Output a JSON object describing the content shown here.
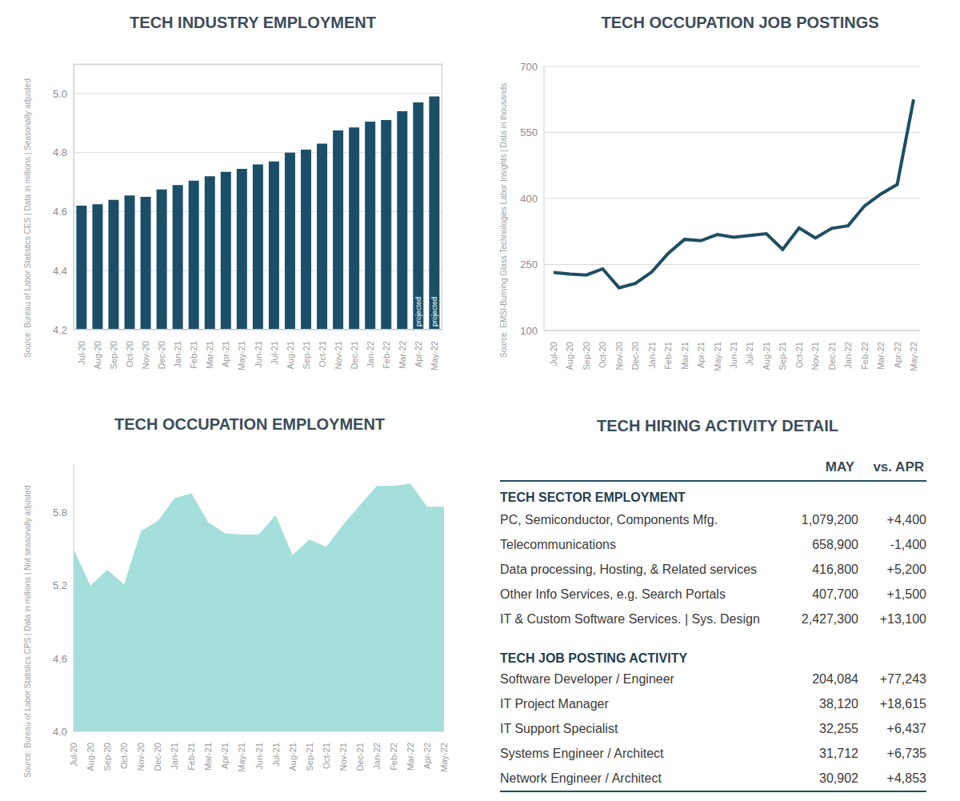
{
  "chart_data": [
    {
      "type": "bar",
      "title": "TECH INDUSTRY EMPLOYMENT",
      "y_label": "Source: Bureau of Labor Statistics CES | Data in millions | Seasonally adjusted",
      "categories": [
        "Jul-20",
        "Aug-20",
        "Sep-20",
        "Oct-20",
        "Nov-20",
        "Dec-20",
        "Jan-21",
        "Feb-21",
        "Mar-21",
        "Apr-21",
        "May-21",
        "Jun-21",
        "Jul-21",
        "Aug-21",
        "Sep-21",
        "Oct-21",
        "Nov-21",
        "Dec-21",
        "Jan-22",
        "Feb-22",
        "Mar-22",
        "Apr-22",
        "May-22"
      ],
      "values": [
        4.62,
        4.625,
        4.64,
        4.655,
        4.65,
        4.675,
        4.69,
        4.705,
        4.72,
        4.735,
        4.745,
        4.76,
        4.77,
        4.8,
        4.81,
        4.83,
        4.875,
        4.885,
        4.905,
        4.91,
        4.94,
        4.97,
        4.99
      ],
      "color": "#1b4f67",
      "ylim": [
        4.2,
        5.1
      ],
      "yticks": [
        4.2,
        4.4,
        4.6,
        4.8,
        {
          "value": 5.0,
          "label": "5.0"
        }
      ],
      "grid": true,
      "annotations": [
        {
          "x": "Apr-22",
          "text": "projected"
        },
        {
          "x": "May-22",
          "text": "projected"
        }
      ]
    },
    {
      "type": "line",
      "title": "TECH OCCUPATION JOB POSTINGS",
      "y_label": "Source: EMSI-Burning Glass Technologies Labor Insights | Data in thousands",
      "categories": [
        "Jul-20",
        "Aug-20",
        "Sep-20",
        "Oct-20",
        "Nov-20",
        "Dec-20",
        "Jan-21",
        "Feb-21",
        "Mar-21",
        "Apr-21",
        "May-21",
        "Jun-21",
        "Jul-21",
        "Aug-21",
        "Sep-21",
        "Oct-21",
        "Nov-21",
        "Dec-21",
        "Jan-22",
        "Feb-22",
        "Mar-22",
        "Apr-22",
        "May-22"
      ],
      "values": [
        232,
        228,
        226,
        240,
        197,
        207,
        233,
        275,
        307,
        304,
        318,
        312,
        316,
        320,
        284,
        333,
        310,
        332,
        338,
        383,
        410,
        432,
        625
      ],
      "color": "#1d4e63",
      "ylim": [
        100,
        700
      ],
      "yticks": [
        100,
        250,
        400,
        550,
        700
      ],
      "grid": true
    },
    {
      "type": "area",
      "title": "TECH OCCUPATION EMPLOYMENT",
      "y_label": "Source: Bureau of Labor Statistics CPS | Data in millions | Not seasonally adjusted",
      "categories": [
        "Jul-20",
        "Aug-20",
        "Sep-20",
        "Oct-20",
        "Nov-20",
        "Dec-20",
        "Jan-21",
        "Feb-21",
        "Mar-21",
        "Apr-21",
        "May-21",
        "Jun-21",
        "Jul-21",
        "Aug-21",
        "Sep-21",
        "Oct-21",
        "Nov-21",
        "Dec-21",
        "Jan-22",
        "Feb-22",
        "Mar-22",
        "Apr-22",
        "May-22"
      ],
      "values": [
        5.5,
        5.2,
        5.33,
        5.21,
        5.65,
        5.73,
        5.92,
        5.96,
        5.72,
        5.63,
        5.62,
        5.62,
        5.78,
        5.45,
        5.58,
        5.52,
        5.7,
        5.86,
        6.02,
        6.02,
        6.04,
        5.85,
        5.85
      ],
      "color": "#a4dfdb",
      "ylim": [
        4.0,
        6.2
      ],
      "yticks": [
        {
          "value": 4.0,
          "label": "4.0"
        },
        4.6,
        5.2,
        5.8
      ],
      "grid": false
    }
  ],
  "table": {
    "title": "TECH HIRING ACTIVITY DETAIL",
    "columns": [
      "MAY",
      "vs. APR"
    ],
    "sections": [
      {
        "title": "TECH SECTOR EMPLOYMENT",
        "rows": [
          [
            "PC, Semiconductor, Components Mfg.",
            "1,079,200",
            "+4,400"
          ],
          [
            "Telecommunications",
            "658,900",
            "-1,400"
          ],
          [
            "Data processing, Hosting, & Related services",
            "416,800",
            "+5,200"
          ],
          [
            "Other Info Services, e.g. Search Portals",
            "407,700",
            "+1,500"
          ],
          [
            "IT & Custom Software Services. | Sys. Design",
            "2,427,300",
            "+13,100"
          ]
        ]
      },
      {
        "title": "TECH JOB POSTING ACTIVITY",
        "rows": [
          [
            "Software Developer / Engineer",
            "204,084",
            "+77,243"
          ],
          [
            "IT Project Manager",
            "38,120",
            "+18,615"
          ],
          [
            "IT Support Specialist",
            "32,255",
            "+6,437"
          ],
          [
            "Systems Engineer / Architect",
            "31,712",
            "+6,735"
          ],
          [
            "Network Engineer / Architect",
            "30,902",
            "+4,853"
          ]
        ]
      }
    ]
  }
}
